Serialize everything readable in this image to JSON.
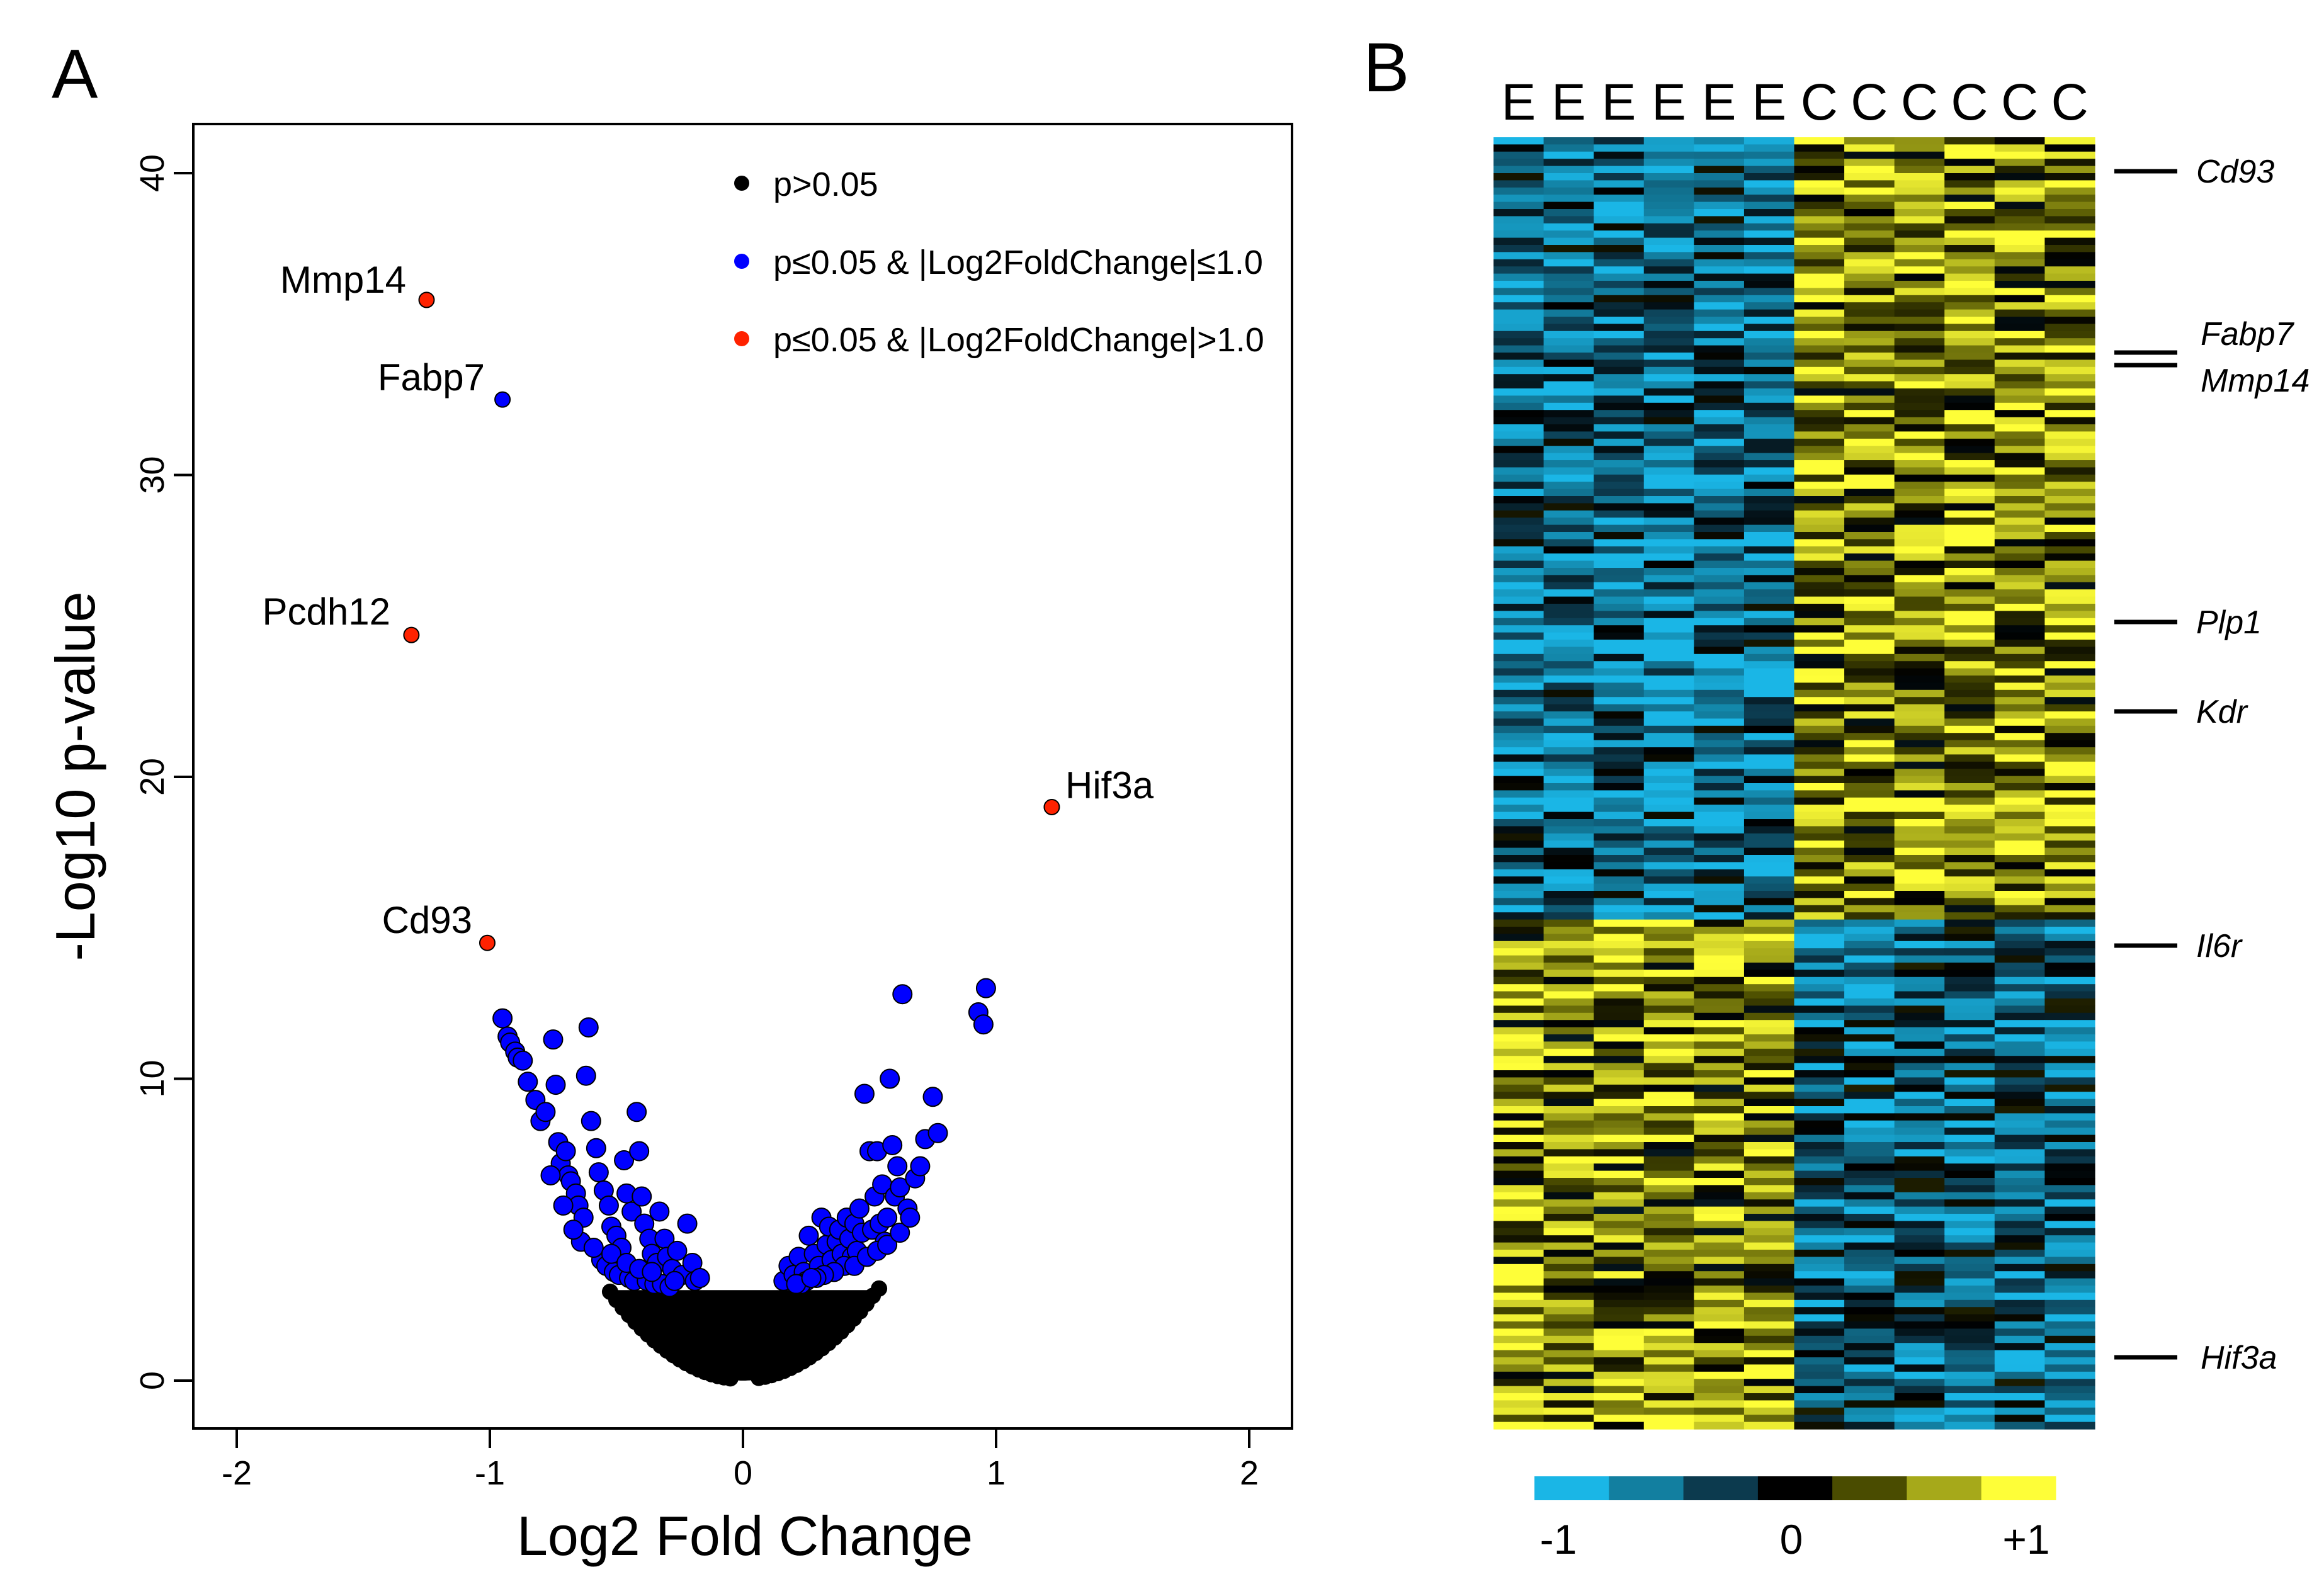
{
  "chart_data": [
    {
      "panel": "A",
      "type": "scatter",
      "title": "",
      "xlabel": "Log2 Fold Change",
      "ylabel": "-Log10 p-value",
      "xlim": [
        -2,
        2
      ],
      "ylim": [
        0,
        40
      ],
      "xticks": [
        "-2",
        "-1",
        "0",
        "1",
        "2"
      ],
      "yticks": [
        "0",
        "10",
        "20",
        "30",
        "40"
      ],
      "legend_position": "top-right",
      "legend": [
        {
          "label": "p>0.05",
          "color": "#000000"
        },
        {
          "label": "p≤0.05 & |Log2FoldChange|≤1.0",
          "color": "#0000ff"
        },
        {
          "label": "p≤0.05 & |Log2FoldChange|>1.0",
          "color": "#ff2200"
        }
      ],
      "labeled_points": [
        {
          "gene": "Mmp14",
          "x": -1.25,
          "y": 35.8,
          "class": "red"
        },
        {
          "gene": "Fabp7",
          "x": -0.95,
          "y": 32.5,
          "class": "blue"
        },
        {
          "gene": "Pcdh12",
          "x": -1.31,
          "y": 24.7,
          "class": "red"
        },
        {
          "gene": "Hif3a",
          "x": 1.22,
          "y": 19.0,
          "class": "red"
        },
        {
          "gene": "Cd93",
          "x": -1.01,
          "y": 14.5,
          "class": "red"
        }
      ],
      "significant_points": [
        [
          -0.95,
          12.0
        ],
        [
          -0.93,
          11.4
        ],
        [
          -0.92,
          11.2
        ],
        [
          -0.9,
          10.9
        ],
        [
          -0.89,
          10.7
        ],
        [
          -0.87,
          10.6
        ],
        [
          -0.85,
          9.9
        ],
        [
          -0.82,
          9.3
        ],
        [
          -0.8,
          8.6
        ],
        [
          -0.78,
          8.9
        ],
        [
          -0.75,
          11.3
        ],
        [
          -0.74,
          9.8
        ],
        [
          -0.73,
          7.9
        ],
        [
          -0.72,
          7.2
        ],
        [
          -0.7,
          7.6
        ],
        [
          -0.69,
          6.8
        ],
        [
          -0.68,
          6.6
        ],
        [
          -0.66,
          6.2
        ],
        [
          -0.65,
          5.8
        ],
        [
          -0.63,
          5.4
        ],
        [
          -0.61,
          11.7
        ],
        [
          -0.62,
          10.1
        ],
        [
          -0.6,
          8.6
        ],
        [
          -0.58,
          7.7
        ],
        [
          -0.57,
          6.9
        ],
        [
          -0.55,
          6.3
        ],
        [
          -0.53,
          5.8
        ],
        [
          -0.52,
          5.1
        ],
        [
          -0.5,
          4.8
        ],
        [
          -0.48,
          4.4
        ],
        [
          -0.47,
          7.3
        ],
        [
          -0.46,
          6.2
        ],
        [
          -0.44,
          5.6
        ],
        [
          -0.42,
          8.9
        ],
        [
          -0.41,
          7.6
        ],
        [
          -0.4,
          6.1
        ],
        [
          -0.39,
          5.2
        ],
        [
          -0.37,
          4.7
        ],
        [
          -0.36,
          4.2
        ],
        [
          -0.34,
          3.9
        ],
        [
          -0.33,
          5.6
        ],
        [
          -0.31,
          4.7
        ],
        [
          -0.3,
          4.1
        ],
        [
          -0.28,
          3.7
        ],
        [
          -0.26,
          4.3
        ],
        [
          -0.24,
          3.5
        ],
        [
          -0.22,
          5.2
        ],
        [
          -0.2,
          3.9
        ],
        [
          -0.19,
          3.3
        ],
        [
          -0.17,
          3.4
        ],
        [
          -0.56,
          4.0
        ],
        [
          -0.54,
          3.8
        ],
        [
          -0.51,
          3.6
        ],
        [
          -0.49,
          3.5
        ],
        [
          -0.45,
          3.4
        ],
        [
          -0.43,
          3.3
        ],
        [
          -0.38,
          3.3
        ],
        [
          -0.35,
          3.2
        ],
        [
          -0.32,
          3.2
        ],
        [
          -0.29,
          3.1
        ],
        [
          -0.64,
          4.6
        ],
        [
          -0.67,
          5.0
        ],
        [
          -0.71,
          5.8
        ],
        [
          -0.76,
          6.8
        ],
        [
          -0.59,
          4.4
        ],
        [
          -0.52,
          4.2
        ],
        [
          -0.46,
          3.9
        ],
        [
          -0.41,
          3.7
        ],
        [
          -0.36,
          3.6
        ],
        [
          -0.27,
          3.3
        ],
        [
          0.16,
          3.3
        ],
        [
          0.18,
          3.8
        ],
        [
          0.2,
          3.5
        ],
        [
          0.22,
          4.1
        ],
        [
          0.24,
          3.6
        ],
        [
          0.26,
          4.8
        ],
        [
          0.28,
          4.2
        ],
        [
          0.3,
          3.8
        ],
        [
          0.31,
          5.4
        ],
        [
          0.33,
          4.5
        ],
        [
          0.34,
          5.1
        ],
        [
          0.35,
          4.0
        ],
        [
          0.37,
          4.6
        ],
        [
          0.38,
          5.0
        ],
        [
          0.39,
          4.2
        ],
        [
          0.41,
          5.4
        ],
        [
          0.42,
          4.7
        ],
        [
          0.43,
          4.1
        ],
        [
          0.44,
          5.2
        ],
        [
          0.45,
          4.3
        ],
        [
          0.46,
          5.7
        ],
        [
          0.47,
          4.9
        ],
        [
          0.48,
          9.5
        ],
        [
          0.5,
          7.6
        ],
        [
          0.51,
          5.0
        ],
        [
          0.52,
          6.1
        ],
        [
          0.53,
          7.6
        ],
        [
          0.54,
          5.2
        ],
        [
          0.55,
          6.5
        ],
        [
          0.56,
          4.6
        ],
        [
          0.57,
          5.4
        ],
        [
          0.58,
          10.0
        ],
        [
          0.59,
          7.8
        ],
        [
          0.6,
          6.1
        ],
        [
          0.61,
          7.1
        ],
        [
          0.62,
          6.4
        ],
        [
          0.63,
          12.8
        ],
        [
          0.65,
          5.7
        ],
        [
          0.68,
          6.7
        ],
        [
          0.7,
          7.1
        ],
        [
          0.72,
          8.0
        ],
        [
          0.75,
          9.4
        ],
        [
          0.77,
          8.2
        ],
        [
          0.93,
          12.2
        ],
        [
          0.95,
          11.8
        ],
        [
          0.96,
          13.0
        ],
        [
          0.4,
          3.8
        ],
        [
          0.36,
          3.6
        ],
        [
          0.32,
          3.5
        ],
        [
          0.29,
          3.4
        ],
        [
          0.25,
          3.3
        ],
        [
          0.23,
          3.2
        ],
        [
          0.21,
          3.2
        ],
        [
          0.44,
          3.8
        ],
        [
          0.49,
          4.1
        ],
        [
          0.53,
          4.3
        ],
        [
          0.57,
          4.5
        ],
        [
          0.62,
          4.9
        ],
        [
          0.66,
          5.4
        ],
        [
          0.27,
          3.4
        ]
      ]
    },
    {
      "panel": "B",
      "type": "heatmap",
      "columns": [
        "E",
        "E",
        "E",
        "E",
        "E",
        "E",
        "C",
        "C",
        "C",
        "C",
        "C",
        "C"
      ],
      "gene_labels": [
        "Cd93",
        "Fabp7",
        "Mmp14",
        "Plp1",
        "Kdr",
        "Il6r",
        "Hif3a"
      ],
      "colorbar_labels": [
        "-1",
        "0",
        "+1"
      ],
      "colorbar_colors": [
        "#1ab6e6",
        "#127fa0",
        "#0c3a4e",
        "#000000",
        "#4a4c00",
        "#a6a91a",
        "#fefe38"
      ],
      "value_range": [
        -1,
        1
      ],
      "row_groups": [
        {
          "name": "up-in-C",
          "E_mean": -0.55,
          "C_mean": 0.55
        },
        {
          "name": "up-in-E",
          "E_mean": 0.5,
          "C_mean": -0.5
        }
      ]
    }
  ]
}
